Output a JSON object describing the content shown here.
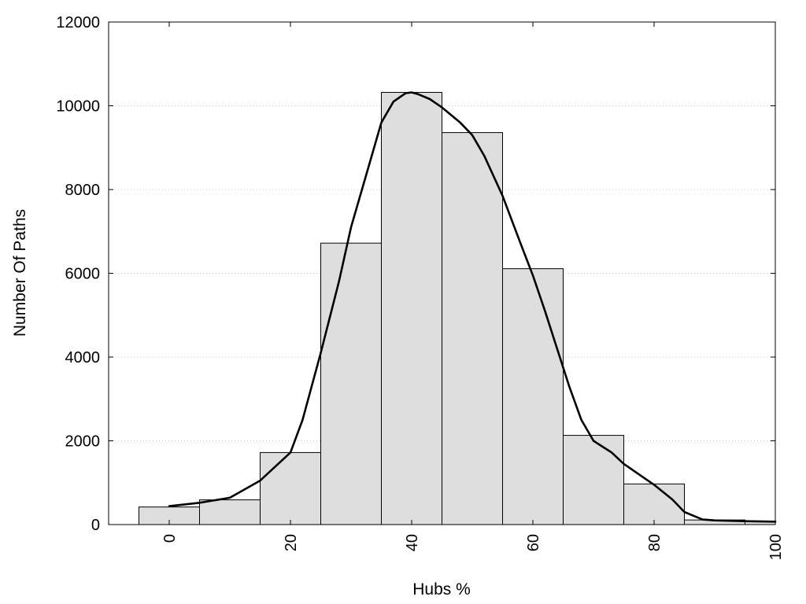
{
  "chart_data": {
    "type": "bar",
    "xlabel": "Hubs %",
    "ylabel": "Number Of Paths",
    "xlim": [
      -10,
      100
    ],
    "ylim": [
      0,
      12000
    ],
    "xticks": [
      0,
      20,
      40,
      60,
      80,
      100
    ],
    "yticks": [
      0,
      2000,
      4000,
      6000,
      8000,
      10000,
      12000
    ],
    "grid": "horizontal dotted",
    "bin_width": 10,
    "bars": [
      {
        "x": 0,
        "value": 420
      },
      {
        "x": 10,
        "value": 590
      },
      {
        "x": 20,
        "value": 1720
      },
      {
        "x": 30,
        "value": 6720
      },
      {
        "x": 40,
        "value": 10320
      },
      {
        "x": 50,
        "value": 9360
      },
      {
        "x": 60,
        "value": 6110
      },
      {
        "x": 70,
        "value": 2130
      },
      {
        "x": 80,
        "value": 970
      },
      {
        "x": 90,
        "value": 110
      },
      {
        "x": 100,
        "value": 70
      }
    ],
    "curve": {
      "type": "line",
      "x": [
        0,
        5,
        10,
        15,
        20,
        22,
        25,
        28,
        30,
        33,
        35,
        37,
        39,
        40,
        41,
        43,
        45,
        48,
        50,
        52,
        55,
        58,
        60,
        62,
        64,
        66,
        68,
        70,
        73,
        75,
        78,
        80,
        83,
        85,
        88,
        90,
        95,
        100
      ],
      "y": [
        440,
        520,
        640,
        1050,
        1720,
        2500,
        4100,
        5800,
        7100,
        8600,
        9600,
        10100,
        10300,
        10320,
        10280,
        10160,
        9960,
        9600,
        9300,
        8800,
        7850,
        6700,
        5950,
        5100,
        4200,
        3300,
        2500,
        2000,
        1720,
        1450,
        1150,
        950,
        600,
        300,
        120,
        100,
        80,
        70
      ]
    }
  }
}
